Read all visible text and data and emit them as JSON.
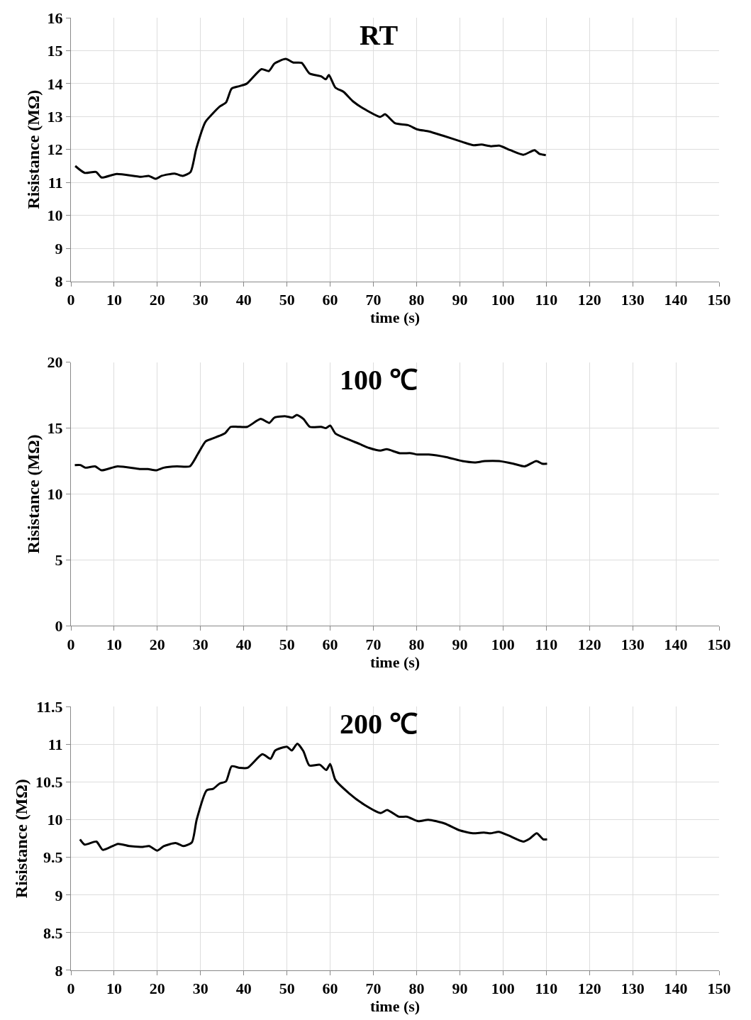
{
  "chart_data": [
    {
      "type": "line",
      "title": "RT",
      "xlabel": "time (s)",
      "ylabel": "Risistance (MΩ)",
      "xlim": [
        0,
        150
      ],
      "xticks": [
        0,
        10,
        20,
        30,
        40,
        50,
        60,
        70,
        80,
        90,
        100,
        110,
        120,
        130,
        140,
        150
      ],
      "ylim": [
        8,
        16
      ],
      "yticks": [
        8,
        9,
        10,
        11,
        12,
        13,
        14,
        15,
        16
      ],
      "grid": true,
      "marker": "none",
      "line_style": "solid",
      "series": [
        {
          "color": "#000000",
          "x": [
            1,
            3.2,
            5.8,
            7.1,
            10.6,
            16.2,
            18,
            19.6,
            21,
            24,
            25.9,
            27.7,
            29,
            31.1,
            32.6,
            34.4,
            35.9,
            37.2,
            38.9,
            40.7,
            44.1,
            45.8,
            47.1,
            49.7,
            51.5,
            53.4,
            55.2,
            57.9,
            59,
            59.7,
            61.2,
            63.1,
            65.3,
            68.3,
            71.6,
            72.7,
            75,
            78,
            80.2,
            82.8,
            86.1,
            90.6,
            93.2,
            95,
            97.2,
            99.1,
            101.7,
            104.7,
            107.3,
            108.4,
            109.9
          ],
          "values": [
            11.5,
            11.29,
            11.32,
            11.15,
            11.26,
            11.17,
            11.2,
            11.11,
            11.2,
            11.27,
            11.2,
            11.32,
            12.02,
            12.83,
            13.06,
            13.3,
            13.43,
            13.85,
            13.92,
            14.0,
            14.44,
            14.38,
            14.61,
            14.75,
            14.64,
            14.63,
            14.31,
            14.22,
            14.13,
            14.26,
            13.88,
            13.75,
            13.46,
            13.2,
            12.99,
            13.07,
            12.8,
            12.74,
            12.61,
            12.55,
            12.42,
            12.23,
            12.13,
            12.15,
            12.1,
            12.12,
            11.98,
            11.84,
            11.98,
            11.87,
            11.83
          ]
        }
      ]
    },
    {
      "type": "line",
      "title": "100 ℃",
      "xlabel": "time (s)",
      "ylabel": "Risistance (MΩ)",
      "xlim": [
        0,
        150
      ],
      "xticks": [
        0,
        10,
        20,
        30,
        40,
        50,
        60,
        70,
        80,
        90,
        100,
        110,
        120,
        130,
        140,
        150
      ],
      "ylim": [
        0,
        20
      ],
      "yticks": [
        0,
        5,
        10,
        15,
        20
      ],
      "grid": true,
      "marker": "none",
      "line_style": "solid",
      "series": [
        {
          "color": "#000000",
          "x": [
            0.9,
            2.2,
            3.3,
            5.6,
            7.1,
            10.8,
            15.9,
            17.8,
            19.7,
            21.5,
            24.5,
            27.5,
            29.3,
            31.2,
            32.7,
            34.2,
            35.6,
            37,
            38.6,
            40.8,
            43.9,
            45.9,
            47.1,
            49.7,
            51.2,
            52.3,
            53.8,
            55.3,
            57.9,
            59,
            60,
            61.2,
            63.8,
            66.8,
            69,
            71.6,
            73.1,
            76.1,
            78.7,
            80.2,
            82.8,
            86.9,
            90.6,
            93.5,
            95.8,
            99.1,
            102.4,
            105,
            107.7,
            109.1,
            110.2
          ],
          "values": [
            12.2,
            12.2,
            12.0,
            12.1,
            11.8,
            12.1,
            11.9,
            11.9,
            11.8,
            12.0,
            12.1,
            12.1,
            13.0,
            14.0,
            14.2,
            14.4,
            14.6,
            15.1,
            15.1,
            15.1,
            15.7,
            15.4,
            15.8,
            15.9,
            15.8,
            16.0,
            15.7,
            15.1,
            15.1,
            15.0,
            15.2,
            14.6,
            14.2,
            13.8,
            13.5,
            13.3,
            13.4,
            13.1,
            13.1,
            13.0,
            13.0,
            12.8,
            12.5,
            12.4,
            12.5,
            12.5,
            12.3,
            12.1,
            12.5,
            12.3,
            12.3
          ]
        }
      ]
    },
    {
      "type": "line",
      "title": "200 ℃",
      "xlabel": "time (s)",
      "ylabel": "Risistance (MΩ)",
      "xlim": [
        0,
        150
      ],
      "xticks": [
        0,
        10,
        20,
        30,
        40,
        50,
        60,
        70,
        80,
        90,
        100,
        110,
        120,
        130,
        140,
        150
      ],
      "ylim": [
        8,
        11.5
      ],
      "yticks": [
        8,
        8.5,
        9,
        9.5,
        10,
        10.5,
        11,
        11.5
      ],
      "grid": true,
      "marker": "none",
      "line_style": "solid",
      "series": [
        {
          "color": "#000000",
          "x": [
            2.1,
            3.2,
            5.9,
            7.4,
            10.9,
            13.5,
            16.6,
            18.1,
            20,
            21.5,
            24.2,
            26.1,
            28,
            29.1,
            31.4,
            32.9,
            34.4,
            35.9,
            37.2,
            39,
            40.9,
            44.3,
            46.2,
            47.3,
            50,
            51.1,
            52.4,
            53.8,
            55.2,
            57.6,
            59.1,
            60,
            61.2,
            64.4,
            67.9,
            71.7,
            73.2,
            75.9,
            77.8,
            80.4,
            82.7,
            86.5,
            89.9,
            93,
            95.6,
            97.1,
            99,
            101.3,
            104.7,
            106.2,
            107.8,
            109.3,
            110.2
          ],
          "values": [
            9.74,
            9.67,
            9.71,
            9.6,
            9.68,
            9.65,
            9.64,
            9.65,
            9.59,
            9.65,
            9.69,
            9.65,
            9.7,
            10.0,
            10.39,
            10.41,
            10.48,
            10.51,
            10.71,
            10.69,
            10.69,
            10.87,
            10.81,
            10.92,
            10.97,
            10.92,
            11.01,
            10.91,
            10.72,
            10.73,
            10.66,
            10.74,
            10.53,
            10.35,
            10.2,
            10.09,
            10.13,
            10.04,
            10.04,
            9.98,
            10.0,
            9.95,
            9.86,
            9.82,
            9.83,
            9.82,
            9.84,
            9.79,
            9.71,
            9.75,
            9.82,
            9.74,
            9.74
          ]
        }
      ]
    }
  ]
}
